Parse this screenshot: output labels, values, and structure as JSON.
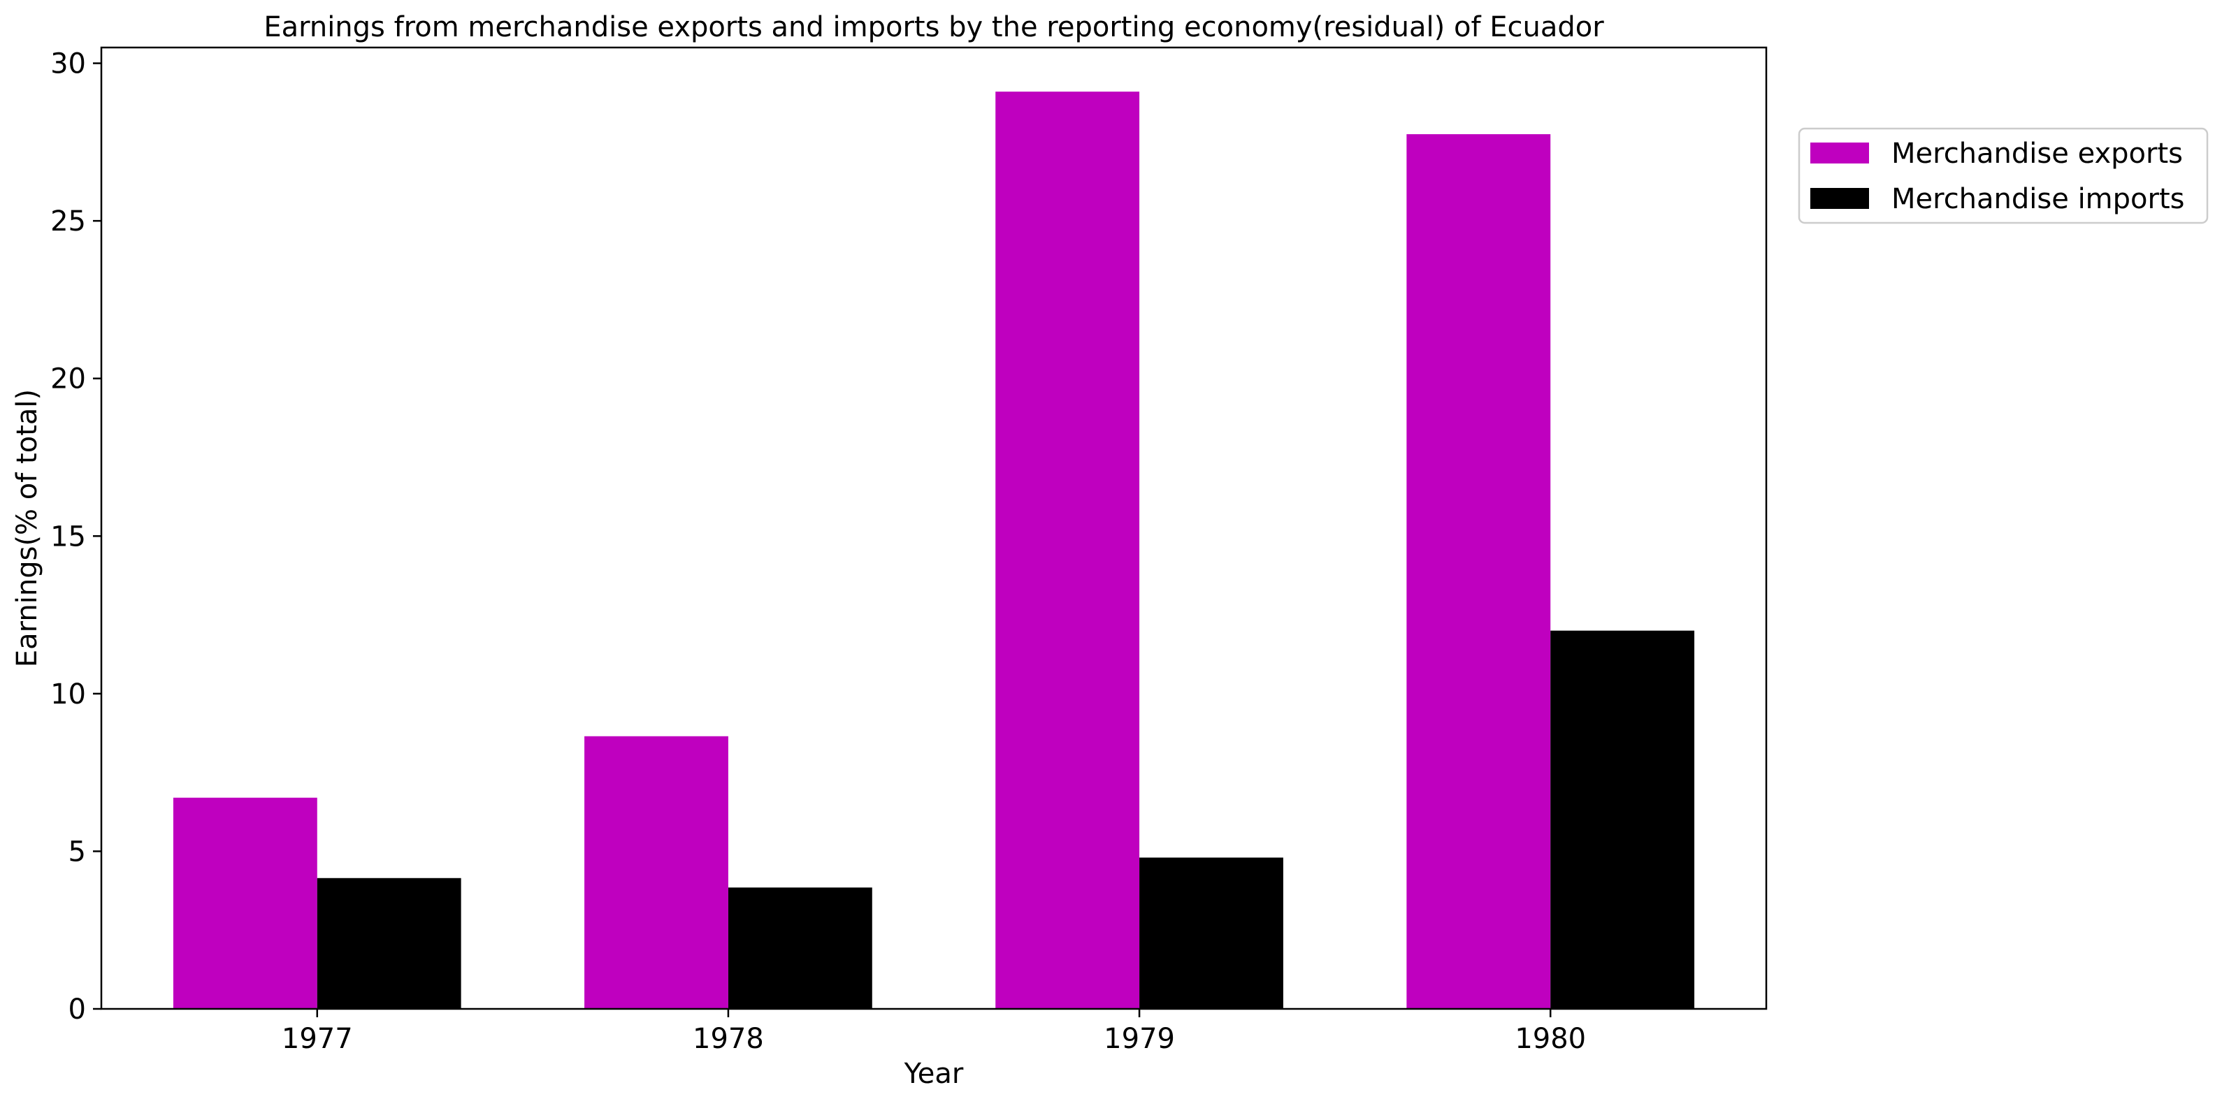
{
  "chart_data": {
    "type": "bar",
    "title": "Earnings from merchandise exports and imports by the reporting economy(residual) of Ecuador",
    "xlabel": "Year",
    "ylabel": "Earnings(% of total)",
    "categories": [
      "1977",
      "1978",
      "1979",
      "1980"
    ],
    "series": [
      {
        "name": "Merchandise exports",
        "color": "#bf00bf",
        "values": [
          6.7,
          8.65,
          29.1,
          27.75
        ]
      },
      {
        "name": "Merchandise imports",
        "color": "#000000",
        "values": [
          4.15,
          3.85,
          4.8,
          12.0
        ]
      }
    ],
    "ylim": [
      0,
      30.5
    ],
    "yticks": [
      0,
      5,
      10,
      15,
      20,
      25,
      30
    ],
    "grid": false,
    "legend_position": "outside-top-right"
  }
}
